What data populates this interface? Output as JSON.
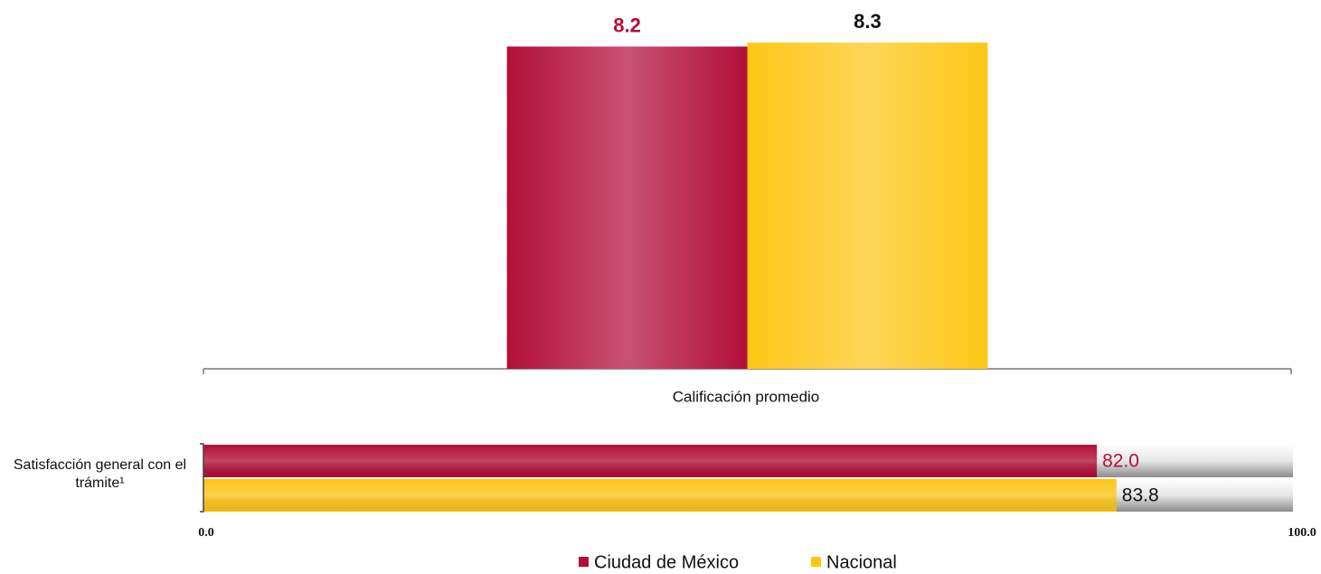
{
  "chart_data": [
    {
      "type": "bar",
      "categories": [
        "Calificación promedio"
      ],
      "series": [
        {
          "name": "Ciudad de México",
          "color": "#b20f38",
          "values": [
            8.2
          ]
        },
        {
          "name": "Nacional",
          "color": "#fdc617",
          "values": [
            8.3
          ]
        }
      ],
      "ylim": [
        0,
        9.2
      ],
      "label_colors": [
        "#b20f38",
        "#111111"
      ]
    },
    {
      "type": "hbar",
      "categories": [
        "Satisfacción general con el trámite¹"
      ],
      "series": [
        {
          "color": "#b20f38",
          "values": [
            82
          ],
          "value_labels": [
            "82.0"
          ]
        },
        {
          "color": "#fdc617",
          "values": [
            83.8
          ]
        }
      ],
      "xlim": [
        0,
        100
      ],
      "xticks": [
        {
          "value": 0,
          "label": "0.0"
        },
        {
          "value": 100,
          "label": "100.0"
        }
      ],
      "label_colors": [
        "#b20f38",
        "#111111"
      ]
    }
  ]
}
